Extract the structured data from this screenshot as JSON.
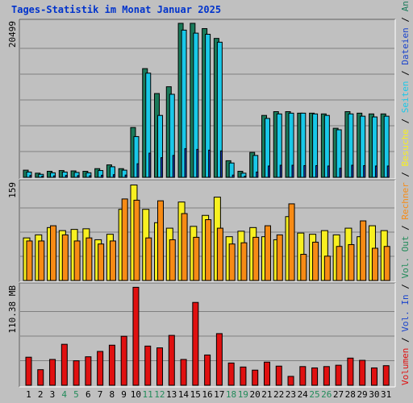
{
  "title": "Tages-Statistik im Monat Januar 2025",
  "colors": {
    "background": "#c0c0c0",
    "anfragen": "#1a7a5a",
    "dateien": "#19c8e8",
    "seiten_weekday": "#1a44cc",
    "besuche": "#f8f020",
    "rechner": "#f78b15",
    "volumen": "#e01010",
    "weekend_label": "#228b5a",
    "weekday_label": "#000000"
  },
  "right_labels": {
    "volumen": "Volumen",
    "vol_in": "Vol. In",
    "vol_out": "Vol. Out",
    "rechner": "Rechner",
    "besuche": "Besuche",
    "seiten": "Seiten",
    "dateien": "Dateien",
    "anfragen": "Anfragen",
    "separator": "/"
  },
  "chart_data": [
    {
      "type": "bar",
      "panel": "hits",
      "ymax_label": "20499",
      "ylim": [
        0,
        20499
      ],
      "categories": [
        "1",
        "2",
        "3",
        "4",
        "5",
        "6",
        "7",
        "8",
        "9",
        "10",
        "11",
        "12",
        "13",
        "14",
        "15",
        "16",
        "17",
        "18",
        "19",
        "20",
        "21",
        "22",
        "23",
        "24",
        "25",
        "26",
        "27",
        "28",
        "29",
        "30",
        "31"
      ],
      "weekend": [
        4,
        5,
        11,
        12,
        18,
        19,
        25,
        26
      ],
      "series": [
        {
          "name": "Anfragen",
          "values": [
            950,
            550,
            800,
            900,
            850,
            800,
            1150,
            1650,
            1150,
            6600,
            14400,
            11100,
            12000,
            20400,
            20400,
            19700,
            18400,
            2200,
            800,
            3300,
            8200,
            8700,
            8700,
            8500,
            8500,
            8400,
            6500,
            8700,
            8500,
            8400,
            8400
          ]
        },
        {
          "name": "Dateien",
          "values": [
            700,
            400,
            600,
            700,
            650,
            600,
            900,
            1400,
            950,
            5400,
            13800,
            8200,
            11000,
            19500,
            19100,
            18950,
            17900,
            1900,
            550,
            2900,
            7800,
            8400,
            8500,
            8500,
            8400,
            8200,
            6300,
            8400,
            8100,
            8000,
            8100
          ]
        },
        {
          "name": "Seiten",
          "values": [
            250,
            150,
            200,
            250,
            230,
            210,
            280,
            350,
            300,
            1800,
            3200,
            2600,
            2900,
            3800,
            3700,
            3600,
            3500,
            300,
            150,
            700,
            1500,
            1600,
            1600,
            1550,
            1550,
            1500,
            1200,
            1600,
            1550,
            1500,
            1500
          ]
        }
      ]
    },
    {
      "type": "bar",
      "panel": "visits",
      "ymax_label": "159",
      "ylim": [
        0,
        159
      ],
      "series": [
        {
          "name": "Besuche",
          "values": [
            70,
            75,
            87,
            82,
            84,
            85,
            67,
            76,
            117,
            157,
            117,
            95,
            86,
            129,
            89,
            107,
            137,
            72,
            81,
            87,
            72,
            67,
            105,
            78,
            76,
            82,
            75,
            86,
            72,
            90,
            82
          ]
        },
        {
          "name": "Rechner",
          "values": [
            65,
            65,
            90,
            75,
            65,
            70,
            60,
            65,
            134,
            132,
            70,
            131,
            67,
            110,
            71,
            100,
            86,
            60,
            62,
            71,
            90,
            75,
            126,
            43,
            63,
            40,
            56,
            59,
            98,
            53,
            56
          ]
        }
      ]
    },
    {
      "type": "bar",
      "panel": "volume",
      "ymax_label": "110.38 MB",
      "ylim": [
        0,
        110.38
      ],
      "series": [
        {
          "name": "Volumen",
          "values": [
            31.5,
            17.5,
            29.0,
            46.0,
            27.5,
            32.0,
            38.0,
            45.0,
            55.0,
            110.0,
            44.0,
            42.0,
            56.0,
            29.0,
            93.0,
            34.0,
            58.0,
            25.0,
            20.5,
            17.0,
            26.0,
            21.5,
            10.0,
            21.0,
            19.5,
            21.0,
            22.5,
            30.5,
            28.0,
            19.5,
            22.0
          ]
        }
      ]
    }
  ]
}
